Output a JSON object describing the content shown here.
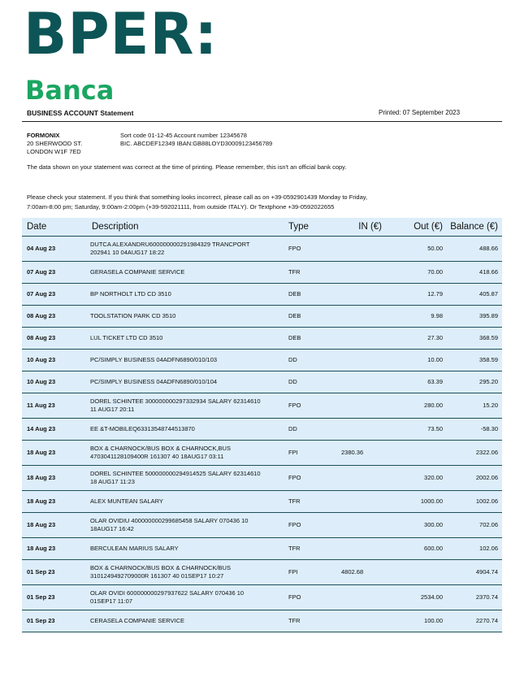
{
  "logo": {
    "main": "BPER:",
    "sub": "Banca",
    "colors": {
      "main": "#0d5456",
      "sub": "#1aa661"
    }
  },
  "header": {
    "title": "BUSINESS ACCOUNT Statement",
    "printed": "Printed: 07 September 2023"
  },
  "customer": {
    "name": "FORMONIX",
    "address1": "20 SHERWOOD ST.",
    "address2": "LONDON W1F 7ED"
  },
  "account": {
    "line1": "Sort code 01-12-45  Account number 12345678",
    "line2": "BIC. ABCDEF12349   IBAN:GB88LOYD30009123456789"
  },
  "notice": "The data shown on your statement was correct at the time of printing. Please remember, this isn't an official bank copy.",
  "contact": "Please check your statement. If you think that something looks incorrect, please call as on +39-0592901439 Monday to Friday, 7:00am-8:00 pm; Saturday, 9:00am-2:00pm (+39-592021111, from outside ITALY). Or Textphone   +39-0592022655",
  "table": {
    "columns": [
      "Date",
      "Description",
      "Type",
      "IN (€)",
      "Out (€)",
      "Balance (€)"
    ],
    "rows": [
      {
        "date": "04 Aug 23",
        "desc": "DUTCA ALEXANDRU600000000291984329 TRANCPORT 202941 10 04AUG17 18:22",
        "type": "FPO",
        "in": "",
        "out": "50.00",
        "bal": "488.66"
      },
      {
        "date": "07 Aug 23",
        "desc": "GERASELA COMPANIE SERVICE",
        "type": "TFR",
        "in": "",
        "out": "70.00",
        "bal": "418.66"
      },
      {
        "date": "07 Aug 23",
        "desc": "BP NORTHOLT LTD CD 3510",
        "type": "DEB",
        "in": "",
        "out": "12.79",
        "bal": "405.87"
      },
      {
        "date": "08 Aug 23",
        "desc": "TOOLSTATION PARK CD 3510",
        "type": "DEB",
        "in": "",
        "out": "9.98",
        "bal": "395.89"
      },
      {
        "date": "08 Aug 23",
        "desc": "LUL TICKET LTD CD 3510",
        "type": "DEB",
        "in": "",
        "out": "27.30",
        "bal": "368.59"
      },
      {
        "date": "10 Aug 23",
        "desc": "PC/SIMPLY BUSINESS 04ADFN6890/010/103",
        "type": "DD",
        "in": "",
        "out": "10.00",
        "bal": "358.59"
      },
      {
        "date": "10 Aug 23",
        "desc": "PC/SIMPLY BUSINESS 04ADFN6890/010/104",
        "type": "DD",
        "in": "",
        "out": "63.39",
        "bal": "295.20"
      },
      {
        "date": "11 Aug 23",
        "desc": "DOREL SCHINTEE 300000000297332934 SALARY 62314610 11 AUG17 20:11",
        "type": "FPO",
        "in": "",
        "out": "280.00",
        "bal": "15.20"
      },
      {
        "date": "14 Aug 23",
        "desc": "EE &T-MOBILEQ63313548744513870",
        "type": "DD",
        "in": "",
        "out": "73.50",
        "bal": "-58.30"
      },
      {
        "date": "18 Aug 23",
        "desc": "BOX & CHARNOCK/BUS BOX & CHARNOCK,BUS 4703041128109400R 161307 40 18AUG17 03:11",
        "type": "FPI",
        "in": "2380.36",
        "out": "",
        "bal": "2322.06"
      },
      {
        "date": "18 Aug 23",
        "desc": "DOREL SCHINTEE 500000000294914525 SALARY 62314610 18 AUG17 11:23",
        "type": "FPO",
        "in": "",
        "out": "320.00",
        "bal": "2002.06"
      },
      {
        "date": "18 Aug 23",
        "desc": "ALEX MUNTEAN SALARY",
        "type": "TFR",
        "in": "",
        "out": "1000.00",
        "bal": "1002.06"
      },
      {
        "date": "18 Aug 23",
        "desc": "OLAR OVIDIU 400000000299685458 SALARY 070436 10 18AUG17 16:42",
        "type": "FPO",
        "in": "",
        "out": "300.00",
        "bal": "702.06"
      },
      {
        "date": "18 Aug 23",
        "desc": "BERCULEAN MARIUS SALARY",
        "type": "TFR",
        "in": "",
        "out": "600.00",
        "bal": "102.06"
      },
      {
        "date": "01 Sep 23",
        "desc": "BOX & CHARNOCK/BUS BOX & CHARNOCK/BUS 3101249492709000R 161307 40 01SEP17 10:27",
        "type": "FPI",
        "in": "4802.68",
        "out": "",
        "bal": "4904.74"
      },
      {
        "date": "01 Sep 23",
        "desc": "OLAR OVIDI 600000000297937622 SALARY 070436 10 01SEP17 11:07",
        "type": "FPO",
        "in": "",
        "out": "2534.00",
        "bal": "2370.74"
      },
      {
        "date": "01 Sep 23",
        "desc": "CERASELA COMPANIE SERVICE",
        "type": "TFR",
        "in": "",
        "out": "100.00",
        "bal": "2270.74"
      }
    ]
  }
}
